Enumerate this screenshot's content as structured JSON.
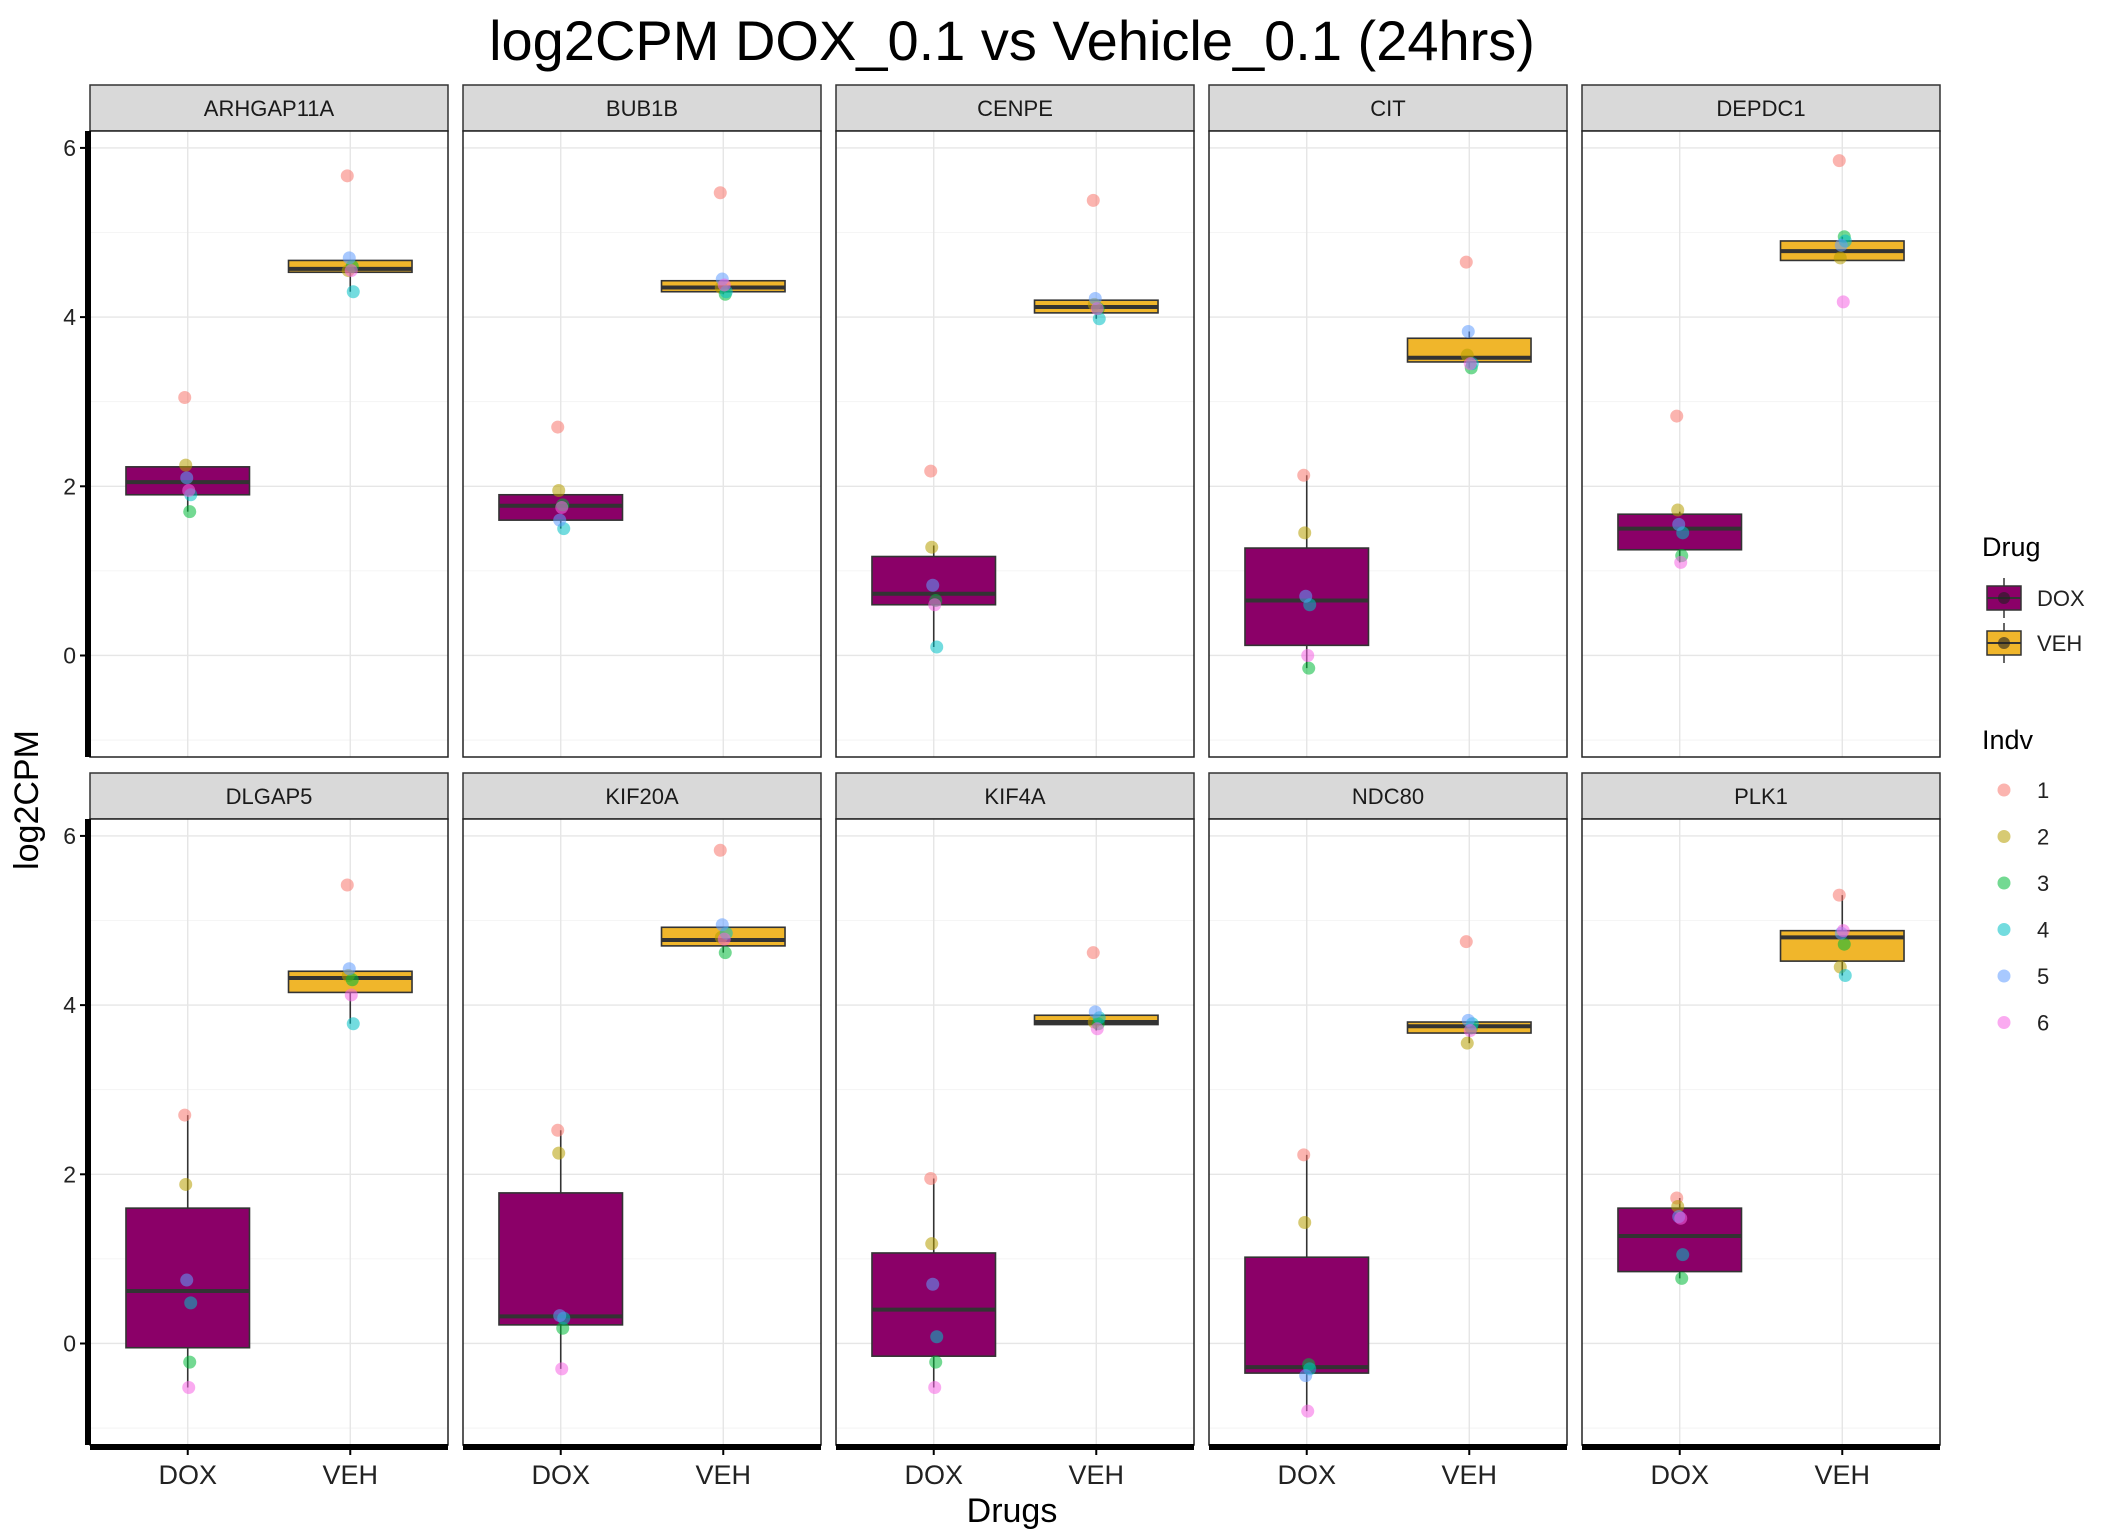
{
  "chart_data": {
    "type": "boxplot",
    "title": "log2CPM DOX_0.1 vs Vehicle_0.1 (24hrs)",
    "xlabel": "Drugs",
    "ylabel": "log2CPM",
    "categories": [
      "DOX",
      "VEH"
    ],
    "y_ticks": [
      "0",
      "2",
      "4",
      "6"
    ],
    "ylim": [
      -1.2,
      6.2
    ],
    "facet_layout": {
      "rows": 2,
      "cols": 5
    },
    "colors": {
      "DOX": "#8b0068",
      "VEH": "#f0b62b",
      "indv": [
        "#f8766d",
        "#b79f00",
        "#00ba38",
        "#00bfc4",
        "#619cff",
        "#f564e3"
      ]
    },
    "legend": {
      "drug_title": "Drug",
      "drug_items": [
        "DOX",
        "VEH"
      ],
      "indv_title": "Indv",
      "indv_items": [
        "1",
        "2",
        "3",
        "4",
        "5",
        "6"
      ],
      "position": "right"
    },
    "panels": [
      {
        "gene": "ARHGAP11A",
        "DOX": {
          "box": [
            1.9,
            2.05,
            2.23
          ],
          "whisker": [
            1.7,
            2.23
          ],
          "points": [
            3.05,
            2.25,
            1.7,
            1.9,
            2.1,
            1.95
          ]
        },
        "VEH": {
          "box": [
            4.53,
            4.57,
            4.67
          ],
          "whisker": [
            4.3,
            4.67
          ],
          "points": [
            5.67,
            4.55,
            4.6,
            4.3,
            4.7,
            4.55
          ]
        }
      },
      {
        "gene": "BUB1B",
        "DOX": {
          "box": [
            1.6,
            1.77,
            1.9
          ],
          "whisker": [
            1.5,
            1.9
          ],
          "points": [
            2.7,
            1.95,
            1.78,
            1.5,
            1.6,
            1.75
          ]
        },
        "VEH": {
          "box": [
            4.3,
            4.35,
            4.43
          ],
          "whisker": [
            4.27,
            4.43
          ],
          "points": [
            5.47,
            4.35,
            4.27,
            4.3,
            4.45,
            4.38
          ]
        }
      },
      {
        "gene": "CENPE",
        "DOX": {
          "box": [
            0.6,
            0.73,
            1.17
          ],
          "whisker": [
            0.1,
            1.3
          ],
          "points": [
            2.18,
            1.28,
            0.65,
            0.1,
            0.83,
            0.6
          ]
        },
        "VEH": {
          "box": [
            4.05,
            4.12,
            4.2
          ],
          "whisker": [
            3.98,
            4.2
          ],
          "points": [
            5.38,
            4.15,
            4.1,
            3.98,
            4.22,
            4.1
          ]
        }
      },
      {
        "gene": "CIT",
        "DOX": {
          "box": [
            0.12,
            0.65,
            1.27
          ],
          "whisker": [
            -0.15,
            2.13
          ],
          "points": [
            2.13,
            1.45,
            -0.15,
            0.6,
            0.7,
            0.0
          ]
        },
        "VEH": {
          "box": [
            3.47,
            3.52,
            3.75
          ],
          "whisker": [
            3.4,
            3.83
          ],
          "points": [
            4.65,
            3.55,
            3.4,
            3.45,
            3.83,
            3.45
          ]
        }
      },
      {
        "gene": "DEPDC1",
        "DOX": {
          "box": [
            1.25,
            1.5,
            1.67
          ],
          "whisker": [
            1.1,
            1.7
          ],
          "points": [
            2.83,
            1.72,
            1.18,
            1.45,
            1.55,
            1.1
          ]
        },
        "VEH": {
          "box": [
            4.67,
            4.78,
            4.9
          ],
          "whisker": [
            4.67,
            4.95
          ],
          "points": [
            5.85,
            4.7,
            4.95,
            4.9,
            4.85,
            4.18
          ]
        }
      },
      {
        "gene": "DLGAP5",
        "DOX": {
          "box": [
            -0.05,
            0.62,
            1.6
          ],
          "whisker": [
            -0.52,
            2.7
          ],
          "points": [
            2.7,
            1.88,
            -0.22,
            0.48,
            0.75,
            -0.52
          ]
        },
        "VEH": {
          "box": [
            4.15,
            4.32,
            4.4
          ],
          "whisker": [
            3.78,
            4.4
          ],
          "points": [
            5.42,
            4.35,
            4.3,
            3.78,
            4.43,
            4.12
          ]
        }
      },
      {
        "gene": "KIF20A",
        "DOX": {
          "box": [
            0.22,
            0.32,
            1.78
          ],
          "whisker": [
            -0.3,
            2.52
          ],
          "points": [
            2.52,
            2.25,
            0.18,
            0.3,
            0.33,
            -0.3
          ]
        },
        "VEH": {
          "box": [
            4.7,
            4.77,
            4.92
          ],
          "whisker": [
            4.62,
            4.92
          ],
          "points": [
            5.83,
            4.8,
            4.62,
            4.85,
            4.95,
            4.78
          ]
        }
      },
      {
        "gene": "KIF4A",
        "DOX": {
          "box": [
            -0.15,
            0.4,
            1.07
          ],
          "whisker": [
            -0.52,
            1.95
          ],
          "points": [
            1.95,
            1.18,
            -0.22,
            0.08,
            0.7,
            -0.52
          ]
        },
        "VEH": {
          "box": [
            3.77,
            3.8,
            3.88
          ],
          "whisker": [
            3.7,
            3.88
          ],
          "points": [
            4.62,
            3.8,
            3.78,
            3.85,
            3.92,
            3.72
          ]
        }
      },
      {
        "gene": "NDC80",
        "DOX": {
          "box": [
            -0.35,
            -0.28,
            1.02
          ],
          "whisker": [
            -0.8,
            2.23
          ],
          "points": [
            2.23,
            1.43,
            -0.25,
            -0.3,
            -0.38,
            -0.8
          ]
        },
        "VEH": {
          "box": [
            3.67,
            3.75,
            3.8
          ],
          "whisker": [
            3.55,
            3.8
          ],
          "points": [
            4.75,
            3.55,
            3.73,
            3.78,
            3.82,
            3.7
          ]
        }
      },
      {
        "gene": "PLK1",
        "DOX": {
          "box": [
            0.85,
            1.27,
            1.6
          ],
          "whisker": [
            0.77,
            1.72
          ],
          "points": [
            1.72,
            1.62,
            0.77,
            1.05,
            1.5,
            1.48
          ]
        },
        "VEH": {
          "box": [
            4.52,
            4.8,
            4.88
          ],
          "whisker": [
            4.35,
            5.3
          ],
          "points": [
            5.3,
            4.45,
            4.72,
            4.35,
            4.85,
            4.88
          ]
        }
      }
    ]
  }
}
